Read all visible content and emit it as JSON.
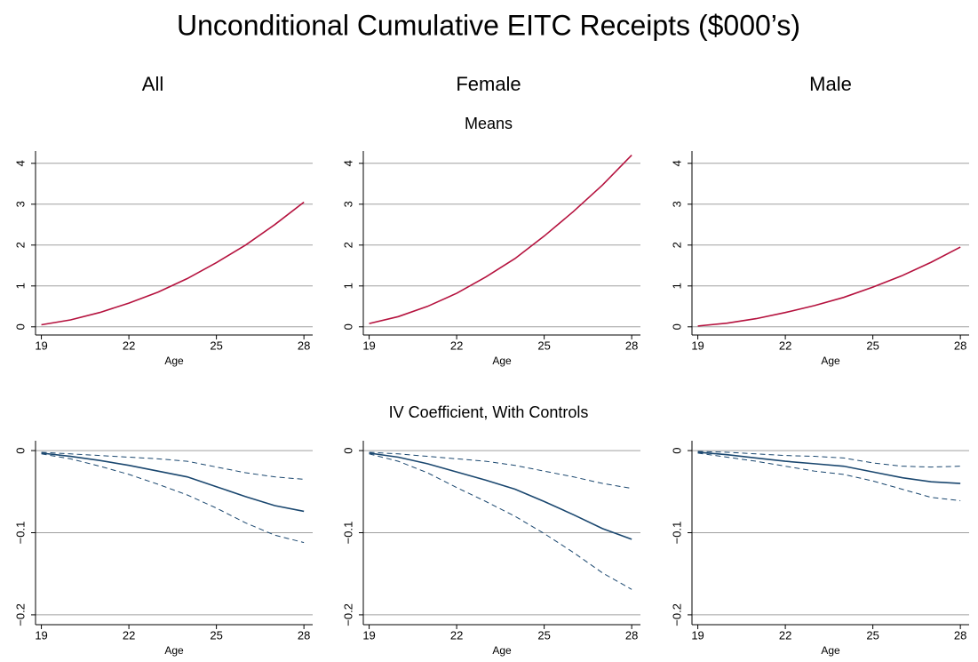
{
  "title": "Unconditional Cumulative EITC Receipts ($000’s)",
  "column_titles": [
    "All",
    "Female",
    "Male"
  ],
  "row_titles": [
    "Means",
    "IV Coefficient, With Controls"
  ],
  "chart_data": [
    {
      "type": "line",
      "xlabel": "Age",
      "x": [
        19,
        20,
        21,
        22,
        23,
        24,
        25,
        26,
        27,
        28
      ],
      "xlim": [
        18.8,
        28.3
      ],
      "xticks": [
        19,
        22,
        25,
        28
      ],
      "ylim": [
        -0.2,
        4.3
      ],
      "yticks": [
        0,
        1,
        2,
        3,
        4
      ],
      "grid": true,
      "series": [
        {
          "color": "#b5123e",
          "style": "solid",
          "values": [
            0.05,
            0.17,
            0.35,
            0.58,
            0.85,
            1.18,
            1.57,
            2.0,
            2.5,
            3.05
          ]
        }
      ]
    },
    {
      "type": "line",
      "xlabel": "Age",
      "x": [
        19,
        20,
        21,
        22,
        23,
        24,
        25,
        26,
        27,
        28
      ],
      "xlim": [
        18.8,
        28.3
      ],
      "xticks": [
        19,
        22,
        25,
        28
      ],
      "ylim": [
        -0.2,
        4.3
      ],
      "yticks": [
        0,
        1,
        2,
        3,
        4
      ],
      "grid": true,
      "series": [
        {
          "color": "#b5123e",
          "style": "solid",
          "values": [
            0.08,
            0.25,
            0.5,
            0.82,
            1.22,
            1.67,
            2.22,
            2.82,
            3.47,
            4.2
          ]
        }
      ]
    },
    {
      "type": "line",
      "xlabel": "Age",
      "x": [
        19,
        20,
        21,
        22,
        23,
        24,
        25,
        26,
        27,
        28
      ],
      "xlim": [
        18.8,
        28.3
      ],
      "xticks": [
        19,
        22,
        25,
        28
      ],
      "ylim": [
        -0.2,
        4.3
      ],
      "yticks": [
        0,
        1,
        2,
        3,
        4
      ],
      "grid": true,
      "series": [
        {
          "color": "#b5123e",
          "style": "solid",
          "values": [
            0.02,
            0.09,
            0.2,
            0.35,
            0.52,
            0.72,
            0.97,
            1.25,
            1.58,
            1.95
          ]
        }
      ]
    },
    {
      "type": "line",
      "xlabel": "Age",
      "x": [
        19,
        20,
        21,
        22,
        23,
        24,
        25,
        26,
        27,
        28
      ],
      "xlim": [
        18.8,
        28.3
      ],
      "xticks": [
        19,
        22,
        25,
        28
      ],
      "ylim": [
        -0.212,
        0.012
      ],
      "yticks": [
        0,
        {
          "value": -0.1,
          "label": "−0.1"
        },
        {
          "value": -0.2,
          "label": "−0.2"
        }
      ],
      "grid": true,
      "series": [
        {
          "color": "#1a476f",
          "style": "solid",
          "values": [
            -0.003,
            -0.007,
            -0.012,
            -0.018,
            -0.025,
            -0.032,
            -0.044,
            -0.056,
            -0.067,
            -0.074
          ]
        },
        {
          "color": "#1a476f",
          "style": "dashed",
          "values": [
            -0.004,
            -0.01,
            -0.019,
            -0.029,
            -0.041,
            -0.054,
            -0.07,
            -0.088,
            -0.103,
            -0.112
          ]
        },
        {
          "color": "#1a476f",
          "style": "dashed",
          "values": [
            -0.002,
            -0.004,
            -0.006,
            -0.008,
            -0.01,
            -0.013,
            -0.02,
            -0.027,
            -0.032,
            -0.035
          ]
        }
      ]
    },
    {
      "type": "line",
      "xlabel": "Age",
      "x": [
        19,
        20,
        21,
        22,
        23,
        24,
        25,
        26,
        27,
        28
      ],
      "xlim": [
        18.8,
        28.3
      ],
      "xticks": [
        19,
        22,
        25,
        28
      ],
      "ylim": [
        -0.212,
        0.012
      ],
      "yticks": [
        0,
        {
          "value": -0.1,
          "label": "−0.1"
        },
        {
          "value": -0.2,
          "label": "−0.2"
        }
      ],
      "grid": true,
      "series": [
        {
          "color": "#1a476f",
          "style": "solid",
          "values": [
            -0.003,
            -0.008,
            -0.016,
            -0.026,
            -0.036,
            -0.047,
            -0.062,
            -0.078,
            -0.095,
            -0.108
          ]
        },
        {
          "color": "#1a476f",
          "style": "dashed",
          "values": [
            -0.004,
            -0.013,
            -0.027,
            -0.045,
            -0.062,
            -0.08,
            -0.101,
            -0.124,
            -0.149,
            -0.169
          ]
        },
        {
          "color": "#1a476f",
          "style": "dashed",
          "values": [
            -0.002,
            -0.004,
            -0.007,
            -0.01,
            -0.013,
            -0.018,
            -0.025,
            -0.032,
            -0.04,
            -0.046
          ]
        }
      ]
    },
    {
      "type": "line",
      "xlabel": "Age",
      "x": [
        19,
        20,
        21,
        22,
        23,
        24,
        25,
        26,
        27,
        28
      ],
      "xlim": [
        18.8,
        28.3
      ],
      "xticks": [
        19,
        22,
        25,
        28
      ],
      "ylim": [
        -0.212,
        0.012
      ],
      "yticks": [
        0,
        {
          "value": -0.1,
          "label": "−0.1"
        },
        {
          "value": -0.2,
          "label": "−0.2"
        }
      ],
      "grid": true,
      "series": [
        {
          "color": "#1a476f",
          "style": "solid",
          "values": [
            -0.002,
            -0.005,
            -0.009,
            -0.013,
            -0.016,
            -0.019,
            -0.026,
            -0.033,
            -0.038,
            -0.04
          ]
        },
        {
          "color": "#1a476f",
          "style": "dashed",
          "values": [
            -0.003,
            -0.008,
            -0.013,
            -0.019,
            -0.025,
            -0.029,
            -0.037,
            -0.047,
            -0.057,
            -0.061
          ]
        },
        {
          "color": "#1a476f",
          "style": "dashed",
          "values": [
            -0.001,
            -0.002,
            -0.004,
            -0.006,
            -0.007,
            -0.009,
            -0.015,
            -0.019,
            -0.02,
            -0.019
          ]
        }
      ]
    }
  ]
}
